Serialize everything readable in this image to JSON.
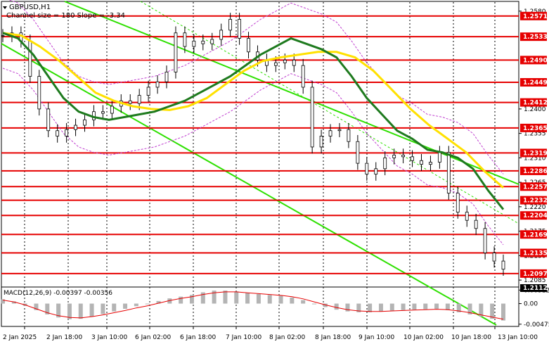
{
  "symbol_label": "GBPUSD,H1",
  "channel_label": "Channel size = 180 Slope = -3.34",
  "macd_label": "MACD(12,26,9) -0.00397 -0.00356",
  "colors": {
    "level_line": "#e60000",
    "level_box": "#e60000",
    "channel": "#2ee000",
    "sma_fast": "#1e7a1e",
    "sma_slow": "#ffe100",
    "bollinger": "#c040d0",
    "macd_hist": "#b4b4b4",
    "macd_signal": "#e60000",
    "price_box": "#000000"
  },
  "icons": {
    "dropdown": "triangle-down-icon"
  },
  "chart_data": [
    {
      "type": "line",
      "title": "GBPUSD,H1",
      "annotation": "Channel size = 180 Slope = -3.34",
      "y_ticks": [
        "1.2580",
        "1.2400",
        "1.2355",
        "1.2310",
        "1.2265",
        "1.2220",
        "1.2175",
        "1.2130",
        "1.2085"
      ],
      "levels": [
        1.2571,
        1.2533,
        1.249,
        1.2449,
        1.2412,
        1.2365,
        1.2319,
        1.2286,
        1.2257,
        1.2232,
        1.2204,
        1.2169,
        1.2135,
        1.2097
      ],
      "level_labels": [
        "1.2571",
        "1.2533",
        "1.2490",
        "1.2449",
        "1.2412",
        "1.2365",
        "1.2319",
        "1.2286",
        "1.2257",
        "1.2232",
        "1.2204",
        "1.2169",
        "1.2135",
        "1.2097"
      ],
      "current_price": "1.2112",
      "x_labels": [
        "2 Jan 2025",
        "2 Jan 18:00",
        "3 Jan 10:00",
        "6 Jan 02:00",
        "6 Jan 18:00",
        "7 Jan 10:00",
        "8 Jan 02:00",
        "8 Jan 18:00",
        "9 Jan 10:00",
        "10 Jan 02:00",
        "10 Jan 18:00",
        "13 Jan 10:00"
      ],
      "series": [
        {
          "name": "close",
          "values": [
            1.2535,
            1.254,
            1.2525,
            1.246,
            1.24,
            1.236,
            1.235,
            1.2362,
            1.237,
            1.238,
            1.2395,
            1.2392,
            1.2405,
            1.2415,
            1.241,
            1.2425,
            1.244,
            1.245,
            1.2468,
            1.254,
            1.2515,
            1.2525,
            1.252,
            1.2528,
            1.2545,
            1.2565,
            1.253,
            1.2505,
            1.249,
            1.248,
            1.2485,
            1.249,
            1.248,
            1.244,
            1.233,
            1.235,
            1.236,
            1.2362,
            1.234,
            1.23,
            1.228,
            1.229,
            1.231,
            1.2315,
            1.2312,
            1.2305,
            1.2298,
            1.2302,
            1.232,
            1.2245,
            1.221,
            1.2195,
            1.218,
            1.2135,
            1.212,
            1.2105
          ]
        },
        {
          "name": "SMA fast",
          "values": [
            1.254,
            1.253,
            1.25,
            1.246,
            1.242,
            1.2395,
            1.2385,
            1.238,
            1.2385,
            1.239,
            1.2395,
            1.2405,
            1.2415,
            1.243,
            1.2445,
            1.246,
            1.248,
            1.25,
            1.2515,
            1.253,
            1.252,
            1.251,
            1.2495,
            1.246,
            1.242,
            1.239,
            1.236,
            1.2345,
            1.2325,
            1.232,
            1.231,
            1.229,
            1.225,
            1.2215
          ]
        },
        {
          "name": "SMA slow",
          "values": [
            1.254,
            1.2535,
            1.2515,
            1.249,
            1.246,
            1.243,
            1.2415,
            1.2405,
            1.24,
            1.2398,
            1.2405,
            1.242,
            1.2445,
            1.247,
            1.2488,
            1.2495,
            1.25,
            1.2505,
            1.2505,
            1.2495,
            1.247,
            1.2435,
            1.24,
            1.237,
            1.2345,
            1.232,
            1.2285,
            1.2255
          ]
        }
      ],
      "macd": {
        "title": "MACD(12,26,9) -0.00397 -0.00356",
        "y_ticks": [
          "0.00312",
          "0.00",
          "-0.00475"
        ],
        "histogram": [
          0.001,
          0.0005,
          -0.0005,
          -0.0015,
          -0.0025,
          -0.0032,
          -0.0036,
          -0.0035,
          -0.003,
          -0.0024,
          -0.0018,
          -0.0012,
          -0.0006,
          0.0,
          0.0006,
          0.0012,
          0.0016,
          0.002,
          0.0026,
          0.003,
          0.003,
          0.0028,
          0.0025,
          0.0022,
          0.002,
          0.0018,
          0.0014,
          0.0008,
          0.0,
          -0.0008,
          -0.0014,
          -0.0018,
          -0.002,
          -0.002,
          -0.0018,
          -0.0016,
          -0.0015,
          -0.0014,
          -0.0013,
          -0.0012,
          -0.0015,
          -0.002,
          -0.0025,
          -0.003,
          -0.0035,
          -0.0039
        ],
        "signal": [
          0.0008,
          0.0004,
          -0.0003,
          -0.0012,
          -0.0021,
          -0.0028,
          -0.0032,
          -0.0033,
          -0.003,
          -0.0026,
          -0.0021,
          -0.0016,
          -0.001,
          -0.0005,
          0.0001,
          0.0007,
          0.0012,
          0.0016,
          0.0021,
          0.0025,
          0.0027,
          0.0027,
          0.0025,
          0.0023,
          0.0021,
          0.0019,
          0.0016,
          0.0011,
          0.0004,
          -0.0003,
          -0.0009,
          -0.0014,
          -0.0017,
          -0.0018,
          -0.0018,
          -0.0017,
          -0.0016,
          -0.0015,
          -0.0014,
          -0.0013,
          -0.0014,
          -0.0017,
          -0.0021,
          -0.0026,
          -0.0031,
          -0.0036
        ]
      }
    }
  ]
}
